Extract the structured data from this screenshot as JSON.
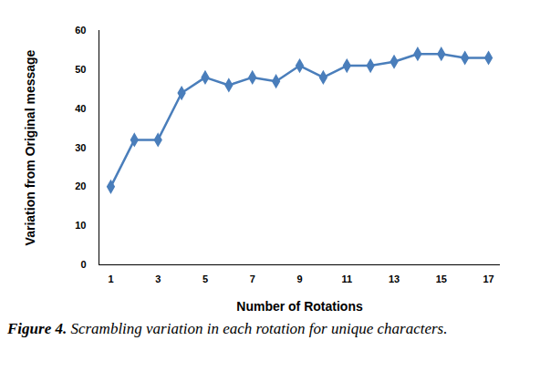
{
  "chart_data": {
    "type": "line",
    "title": "Figure 4. Scrambling variation in each rotation for unique characters.",
    "x_label": "Number of Rotations",
    "y_label": "Variation from Original message",
    "x": [
      1,
      2,
      3,
      4,
      5,
      6,
      7,
      8,
      9,
      10,
      11,
      12,
      13,
      14,
      15,
      16,
      17
    ],
    "values": [
      20,
      32,
      32,
      44,
      48,
      46,
      48,
      47,
      51,
      48,
      51,
      51,
      52,
      54,
      54,
      53,
      53
    ],
    "color": "#4a7ebb",
    "marker": "diamond",
    "xlim": [
      0.5,
      17.5
    ],
    "xticks": [
      1,
      3,
      5,
      7,
      9,
      11,
      13,
      15,
      17
    ],
    "ylim": [
      0,
      60
    ],
    "yticks": [
      0,
      10,
      20,
      30,
      40,
      50,
      60
    ],
    "grid": false
  }
}
